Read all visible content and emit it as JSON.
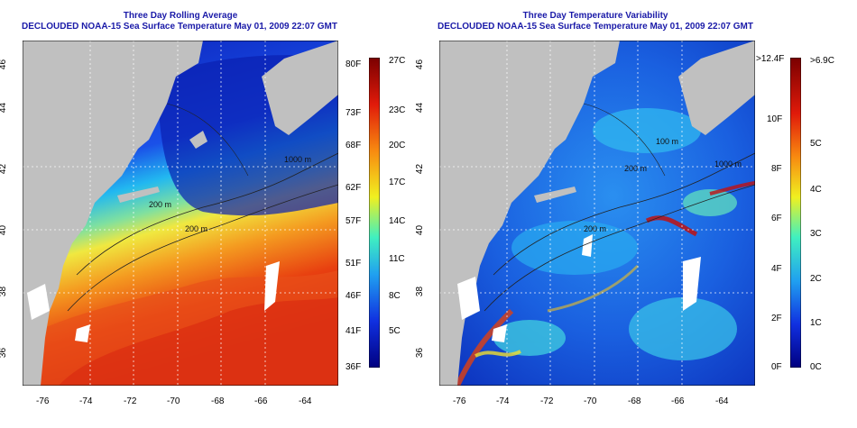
{
  "left": {
    "title": "Three Day Rolling Average",
    "subtitle": "DECLOUDED NOAA-15 Sea Surface Temperature May 01, 2009 22:07 GMT",
    "x_ticks": [
      "-76",
      "-74",
      "-72",
      "-70",
      "-68",
      "-66",
      "-64"
    ],
    "y_ticks": [
      "46",
      "44",
      "42",
      "40",
      "38",
      "36"
    ],
    "colorbar_f": [
      "80F",
      "73F",
      "68F",
      "62F",
      "57F",
      "51F",
      "46F",
      "41F",
      "36F"
    ],
    "colorbar_c": [
      "27C",
      "23C",
      "20C",
      "17C",
      "14C",
      "11C",
      "8C",
      "5C"
    ],
    "contour_labels": [
      "200 m",
      "200 m",
      "1000 m"
    ]
  },
  "right": {
    "title": "Three Day Temperature Variability",
    "subtitle": "DECLOUDED NOAA-15 Sea Surface Temperature May 01, 2009 22:07 GMT",
    "x_ticks": [
      "-76",
      "-74",
      "-72",
      "-70",
      "-68",
      "-66",
      "-64"
    ],
    "y_ticks": [
      "46",
      "44",
      "42",
      "40",
      "38",
      "36"
    ],
    "colorbar_f": [
      ">12.4F",
      "10F",
      "8F",
      "6F",
      "4F",
      "2F",
      "0F"
    ],
    "colorbar_c": [
      ">6.9C",
      "5C",
      "4C",
      "3C",
      "2C",
      "1C",
      "0C"
    ],
    "contour_labels": [
      "100 m",
      "200 m",
      "1000 m",
      "200 m"
    ]
  },
  "colors": {
    "title": "#1a1aa8",
    "land": "#c0c0c0",
    "ocean_cold": "#0a22c8",
    "ocean_warm": "#e83010"
  }
}
